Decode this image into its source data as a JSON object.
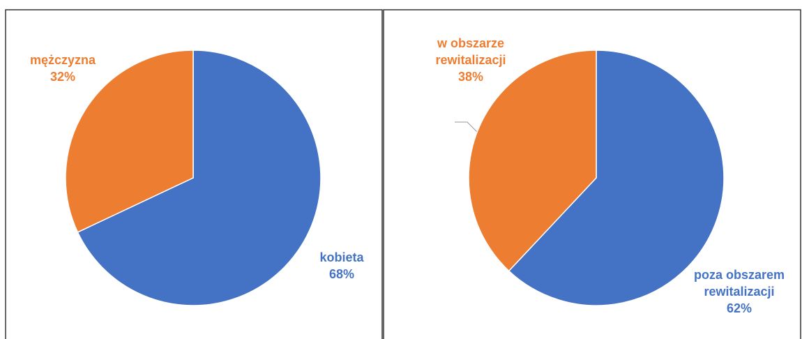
{
  "chart_data": [
    {
      "type": "pie",
      "categories": [
        "kobieta",
        "mężczyzna"
      ],
      "values": [
        68,
        32
      ],
      "value_labels": [
        "68%",
        "32%"
      ],
      "colors": [
        "#4472c4",
        "#ed7d31"
      ]
    },
    {
      "type": "pie",
      "categories": [
        "poza obszarem rewitalizacji",
        "w obszarze rewitalizacji"
      ],
      "values": [
        62,
        38
      ],
      "value_labels": [
        "62%",
        "38%"
      ],
      "colors": [
        "#4472c4",
        "#ed7d31"
      ]
    }
  ]
}
